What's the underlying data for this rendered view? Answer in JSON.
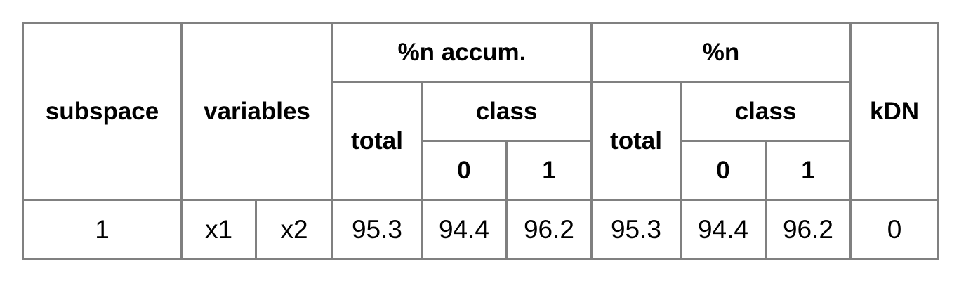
{
  "table": {
    "headers": {
      "subspace": "subspace",
      "variables": "variables",
      "accum": "%n accum.",
      "pct": "%n",
      "kdn": "kDN",
      "total": "total",
      "class": "class",
      "class0": "0",
      "class1": "1"
    },
    "row": {
      "subspace": "1",
      "var1": "x1",
      "var2": "x2",
      "accum_total": "95.3",
      "accum_c0": "94.4",
      "accum_c1": "96.2",
      "pct_total": "95.3",
      "pct_c0": "94.4",
      "pct_c1": "96.2",
      "kdn": "0"
    }
  }
}
